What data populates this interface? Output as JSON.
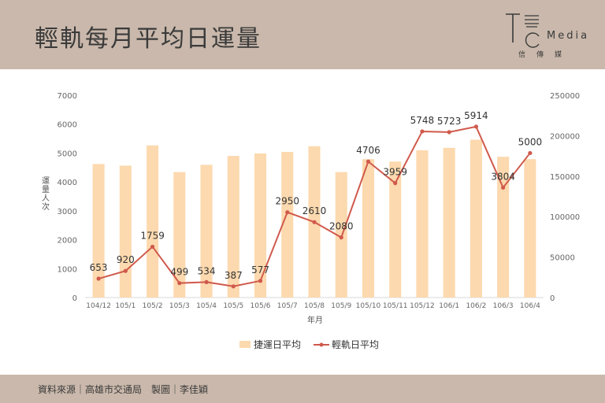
{
  "header": {
    "title": "輕軌每月平均日運量",
    "logo_text": "Media",
    "logo_sub": "信傳媒"
  },
  "footer": {
    "source": "資料來源｜高雄市交通局　製圖｜李佳穎"
  },
  "colors": {
    "header_bg": "#c9b8ab",
    "bar": "#fcd9ae",
    "line": "#d0594b"
  },
  "chart_data": {
    "type": "bar",
    "title": "輕軌每月平均日運量",
    "xlabel": "年月",
    "ylabel_left": "運量人次",
    "categories": [
      "104/12",
      "105/1",
      "105/2",
      "105/3",
      "105/4",
      "105/5",
      "105/6",
      "105/7",
      "105/8",
      "105/9",
      "105/10",
      "105/11",
      "105/12",
      "106/1",
      "106/2",
      "106/3",
      "106/4"
    ],
    "left_axis": {
      "min": 0,
      "max": 7000,
      "ticks": [
        0,
        1000,
        2000,
        3000,
        4000,
        5000,
        6000,
        7000
      ]
    },
    "right_axis": {
      "min": 0,
      "max": 250000,
      "ticks": [
        0,
        50000,
        100000,
        150000,
        200000,
        250000
      ]
    },
    "series": [
      {
        "name": "捷運日平均",
        "type": "bar",
        "axis": "right",
        "values": [
          165000,
          163000,
          188000,
          155000,
          164000,
          175000,
          178000,
          180000,
          187000,
          155000,
          171000,
          168000,
          182000,
          185000,
          195000,
          174000,
          171000
        ]
      },
      {
        "name": "輕軌日平均",
        "type": "line",
        "axis": "left",
        "values": [
          653,
          920,
          1759,
          499,
          534,
          387,
          577,
          2950,
          2610,
          2080,
          4706,
          3959,
          5748,
          5723,
          5914,
          3804,
          5000
        ]
      }
    ],
    "legend": [
      "捷運日平均",
      "輕軌日平均"
    ],
    "legend_position": "bottom"
  }
}
